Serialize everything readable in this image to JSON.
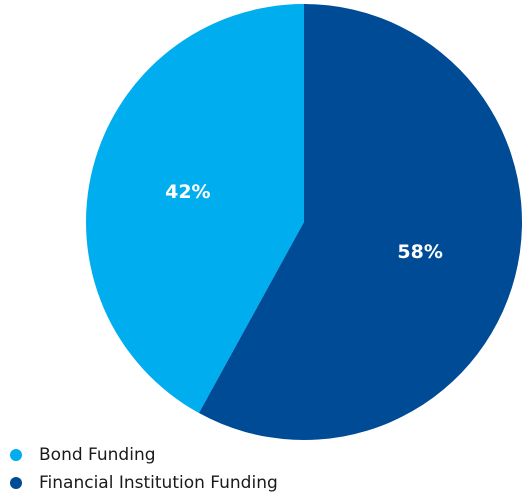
{
  "chart_data": {
    "type": "pie",
    "title": "",
    "slices": [
      {
        "name": "Bond Funding",
        "value": 42,
        "label": "42%",
        "color": "#00aeef"
      },
      {
        "name": "Financial Institution Funding",
        "value": 58,
        "label": "58%",
        "color": "#004b96"
      }
    ],
    "legend": {
      "position": "bottom-left",
      "entries": [
        "Bond Funding",
        "Financial Institution Funding"
      ]
    }
  }
}
